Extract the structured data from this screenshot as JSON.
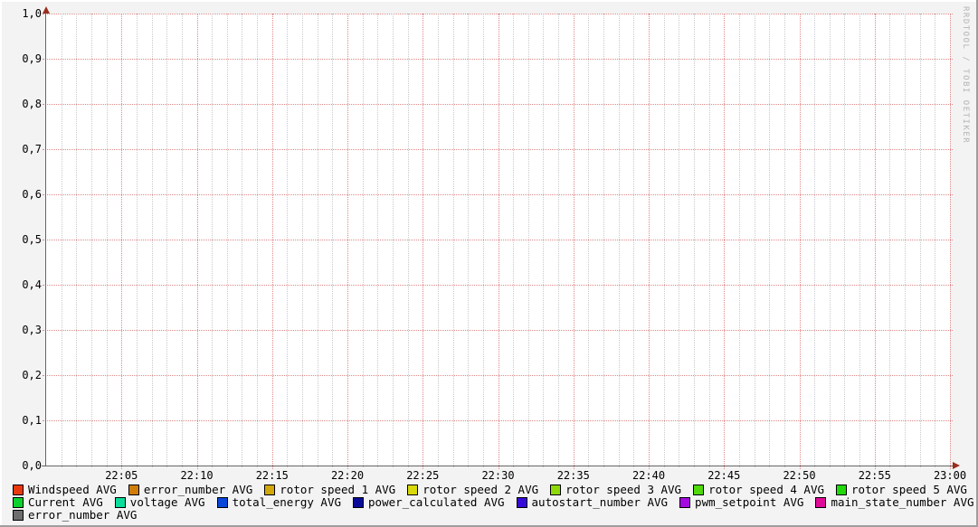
{
  "watermark": "RRDTOOL / TOBI OETIKER",
  "colors": {
    "background": "#F3F3F3",
    "canvas": "#FFFFFF",
    "grid_major": "#E08888",
    "grid_minor": "#C9C9C9",
    "axis": "#666666",
    "arrow": "#9B2D1F",
    "border_light": "#FFFFFF",
    "border_dark": "#9E9E9E",
    "watermark": "#B4B4B4",
    "text": "#000000"
  },
  "chart_data": {
    "type": "line",
    "title": "",
    "xlabel": "",
    "ylabel": "",
    "grid": true,
    "legend_position": "bottom",
    "no_data_plotted": true,
    "x_axis": {
      "start": "22:00",
      "end": "23:00",
      "total_minutes": 60,
      "minor_step_minutes": 1,
      "major_step_minutes": 5,
      "major_tick_labels": [
        "22:05",
        "22:10",
        "22:15",
        "22:20",
        "22:25",
        "22:30",
        "22:35",
        "22:40",
        "22:45",
        "22:50",
        "22:55",
        "23:00"
      ]
    },
    "y_axis": {
      "min": 0.0,
      "max": 1.0,
      "major_step": 0.1,
      "decimal_separator": ",",
      "tick_labels_top_to_bottom": [
        "1,0",
        "0,9",
        "0,8",
        "0,7",
        "0,6",
        "0,5",
        "0,4",
        "0,3",
        "0,2",
        "0,1",
        "0,0"
      ]
    },
    "series": [
      {
        "name": "Windspeed AVG",
        "color": "#E8380D",
        "legend_row": 0,
        "values": []
      },
      {
        "name": "error_number AVG",
        "color": "#D07D0A",
        "legend_row": 0,
        "values": []
      },
      {
        "name": "rotor speed 1 AVG",
        "color": "#D2A80A",
        "legend_row": 0,
        "values": []
      },
      {
        "name": "rotor speed 2 AVG",
        "color": "#D8D80A",
        "legend_row": 0,
        "values": []
      },
      {
        "name": "rotor speed 3 AVG",
        "color": "#8FD90A",
        "legend_row": 0,
        "values": []
      },
      {
        "name": "rotor speed 4 AVG",
        "color": "#4FD90A",
        "legend_row": 0,
        "values": []
      },
      {
        "name": "rotor speed 5 AVG",
        "color": "#21D90A",
        "legend_row": 0,
        "values": []
      },
      {
        "name": "Current AVG",
        "color": "#0AD12E",
        "legend_row": 1,
        "values": []
      },
      {
        "name": "voltage AVG",
        "color": "#0ADD9B",
        "legend_row": 1,
        "values": []
      },
      {
        "name": "total_energy AVG",
        "color": "#0A47D9",
        "legend_row": 1,
        "values": []
      },
      {
        "name": "power_calculated AVG",
        "color": "#0A0A99",
        "legend_row": 1,
        "values": []
      },
      {
        "name": "autostart_number AVG",
        "color": "#350AD9",
        "legend_row": 1,
        "values": []
      },
      {
        "name": "pwm_setpoint AVG",
        "color": "#A50AE0",
        "legend_row": 1,
        "values": []
      },
      {
        "name": "main_state_number AVG",
        "color": "#E00A98",
        "legend_row": 1,
        "values": []
      },
      {
        "name": "error_number AVG",
        "color": "#6E6E6E",
        "legend_row": 2,
        "values": []
      }
    ]
  }
}
